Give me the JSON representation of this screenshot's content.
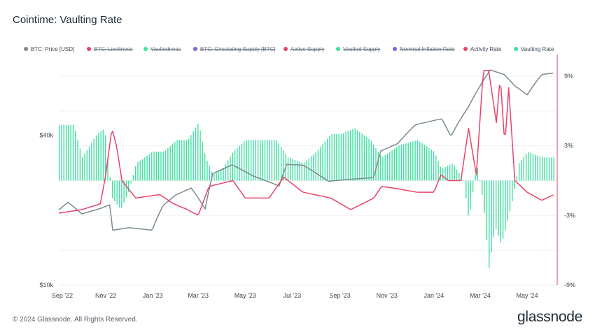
{
  "title": "Cointime: Vaulting Rate",
  "footer": "© 2024 Glassnode. All Rights Reserved.",
  "brand": "glassnode",
  "legend": [
    {
      "label": "BTC: Price [USD]",
      "color": "#7a8a90",
      "active": true
    },
    {
      "label": "BTC: Liveliness",
      "color": "#e8436a",
      "active": false
    },
    {
      "label": "Vaultedness",
      "color": "#3ee0a0",
      "active": false
    },
    {
      "label": "BTC: Circulating Supply [BTC]",
      "color": "#7a6ae0",
      "active": false
    },
    {
      "label": "Active Supply",
      "color": "#e8436a",
      "active": false
    },
    {
      "label": "Vaulted Supply",
      "color": "#3ee0a0",
      "active": false
    },
    {
      "label": "Nominal Inflation Rate",
      "color": "#7a6ae0",
      "active": false
    },
    {
      "label": "Activity Rate",
      "color": "#e8436a",
      "active": true
    },
    {
      "label": "Vaulting Rate",
      "color": "#3ee0a0",
      "active": true
    }
  ],
  "chart_data": {
    "type": "line",
    "title": "Cointime: Vaulting Rate",
    "x_range": [
      "2022-09-01",
      "2024-06-09"
    ],
    "x_ticks": [
      "Sep '22",
      "Nov '22",
      "Jan '23",
      "Mar '23",
      "May '23",
      "Jul '23",
      "Sep '23",
      "Nov '23",
      "Jan '24",
      "Mar '24",
      "May '24"
    ],
    "left_axis": {
      "scale": "log",
      "ticks": [
        "$40k",
        "$10k"
      ],
      "tick_values": [
        40000,
        10000
      ],
      "range": [
        10000,
        81000
      ]
    },
    "right_axis": {
      "ticks": [
        "9%",
        "3%",
        "-3%",
        "-9%"
      ],
      "tick_values": [
        9,
        3,
        -3,
        -9
      ],
      "range": [
        -9,
        10.5
      ]
    },
    "series": [
      {
        "name": "BTC: Price [USD]",
        "axis": "left",
        "style": "line",
        "color": "#7a8a90",
        "points": [
          [
            "2022-09-01",
            20000
          ],
          [
            "2022-09-13",
            21500
          ],
          [
            "2022-10-01",
            19300
          ],
          [
            "2022-10-25",
            20300
          ],
          [
            "2022-11-06",
            21000
          ],
          [
            "2022-11-10",
            16600
          ],
          [
            "2022-12-01",
            17000
          ],
          [
            "2022-12-31",
            16600
          ],
          [
            "2023-01-14",
            20800
          ],
          [
            "2023-01-31",
            23000
          ],
          [
            "2023-02-20",
            24500
          ],
          [
            "2023-03-10",
            20200
          ],
          [
            "2023-03-20",
            28000
          ],
          [
            "2023-04-14",
            30400
          ],
          [
            "2023-05-10",
            27500
          ],
          [
            "2023-06-14",
            25000
          ],
          [
            "2023-06-24",
            30500
          ],
          [
            "2023-07-15",
            30300
          ],
          [
            "2023-08-17",
            26100
          ],
          [
            "2023-09-15",
            26600
          ],
          [
            "2023-10-15",
            27000
          ],
          [
            "2023-10-24",
            34500
          ],
          [
            "2023-11-15",
            37000
          ],
          [
            "2023-12-08",
            44000
          ],
          [
            "2024-01-11",
            46500
          ],
          [
            "2024-01-23",
            39500
          ],
          [
            "2024-02-15",
            52000
          ],
          [
            "2024-03-05",
            66000
          ],
          [
            "2024-03-14",
            73000
          ],
          [
            "2024-04-01",
            70000
          ],
          [
            "2024-04-15",
            63000
          ],
          [
            "2024-05-01",
            58000
          ],
          [
            "2024-05-20",
            70000
          ],
          [
            "2024-06-05",
            71000
          ]
        ]
      },
      {
        "name": "Activity Rate",
        "axis": "right",
        "style": "line",
        "color": "#e8436a",
        "points": [
          [
            "2022-09-01",
            -2.8
          ],
          [
            "2022-10-01",
            -2.5
          ],
          [
            "2022-10-25",
            -2.0
          ],
          [
            "2022-11-01",
            0.5
          ],
          [
            "2022-11-09",
            4.5
          ],
          [
            "2022-11-15",
            3.0
          ],
          [
            "2022-11-22",
            0.0
          ],
          [
            "2022-12-10",
            -1.5
          ],
          [
            "2023-01-10",
            -1.2
          ],
          [
            "2023-01-28",
            -2.0
          ],
          [
            "2023-02-15",
            -2.5
          ],
          [
            "2023-03-01",
            -3.0
          ],
          [
            "2023-03-15",
            -0.5
          ],
          [
            "2023-04-15",
            0.0
          ],
          [
            "2023-05-01",
            -1.5
          ],
          [
            "2023-06-01",
            -1.5
          ],
          [
            "2023-06-20",
            0.3
          ],
          [
            "2023-07-15",
            -1.0
          ],
          [
            "2023-08-20",
            -1.5
          ],
          [
            "2023-09-15",
            -2.5
          ],
          [
            "2023-10-15",
            -1.5
          ],
          [
            "2023-10-25",
            -0.5
          ],
          [
            "2023-11-15",
            -0.7
          ],
          [
            "2023-12-10",
            -1.0
          ],
          [
            "2024-01-01",
            -1.0
          ],
          [
            "2024-01-10",
            0.5
          ],
          [
            "2024-01-20",
            0.0
          ],
          [
            "2024-02-05",
            0.0
          ],
          [
            "2024-02-15",
            4.5
          ],
          [
            "2024-02-25",
            0.5
          ],
          [
            "2024-03-05",
            9.5
          ],
          [
            "2024-03-12",
            9.5
          ],
          [
            "2024-03-22",
            5.0
          ],
          [
            "2024-03-27",
            9.0
          ],
          [
            "2024-04-02",
            3.0
          ],
          [
            "2024-04-07",
            8.0
          ],
          [
            "2024-04-15",
            0.0
          ],
          [
            "2024-05-01",
            -1.0
          ],
          [
            "2024-05-20",
            -1.7
          ],
          [
            "2024-06-05",
            -1.2
          ]
        ]
      },
      {
        "name": "Vaulting Rate",
        "axis": "right",
        "style": "bar",
        "color": "#3ee0a0",
        "points": [
          [
            "2022-09-01",
            4.8
          ],
          [
            "2022-09-20",
            4.8
          ],
          [
            "2022-10-01",
            2.0
          ],
          [
            "2022-10-20",
            4.0
          ],
          [
            "2022-10-30",
            4.5
          ],
          [
            "2022-11-09",
            -1.5
          ],
          [
            "2022-11-20",
            -2.5
          ],
          [
            "2022-11-30",
            -1.0
          ],
          [
            "2022-12-10",
            1.5
          ],
          [
            "2023-01-01",
            2.5
          ],
          [
            "2023-01-15",
            2.5
          ],
          [
            "2023-02-01",
            3.5
          ],
          [
            "2023-02-15",
            3.5
          ],
          [
            "2023-03-01",
            5.0
          ],
          [
            "2023-03-10",
            2.0
          ],
          [
            "2023-03-20",
            0.5
          ],
          [
            "2023-04-01",
            1.0
          ],
          [
            "2023-04-15",
            2.5
          ],
          [
            "2023-05-01",
            3.5
          ],
          [
            "2023-05-20",
            3.5
          ],
          [
            "2023-06-10",
            3.5
          ],
          [
            "2023-06-25",
            2.0
          ],
          [
            "2023-07-15",
            1.5
          ],
          [
            "2023-08-01",
            2.5
          ],
          [
            "2023-08-20",
            4.0
          ],
          [
            "2023-09-01",
            4.0
          ],
          [
            "2023-09-20",
            4.5
          ],
          [
            "2023-10-10",
            3.5
          ],
          [
            "2023-10-25",
            2.0
          ],
          [
            "2023-11-15",
            3.0
          ],
          [
            "2023-12-10",
            3.5
          ],
          [
            "2024-01-01",
            2.5
          ],
          [
            "2024-01-10",
            1.0
          ],
          [
            "2024-01-25",
            1.5
          ],
          [
            "2024-02-08",
            0.0
          ],
          [
            "2024-02-15",
            -3.5
          ],
          [
            "2024-02-25",
            1.5
          ],
          [
            "2024-03-05",
            -2.0
          ],
          [
            "2024-03-12",
            -7.5
          ],
          [
            "2024-03-20",
            -4.0
          ],
          [
            "2024-03-28",
            -5.5
          ],
          [
            "2024-04-05",
            -3.5
          ],
          [
            "2024-04-12",
            -1.5
          ],
          [
            "2024-04-20",
            1.5
          ],
          [
            "2024-05-01",
            2.5
          ],
          [
            "2024-05-20",
            2.0
          ],
          [
            "2024-06-05",
            2.0
          ]
        ]
      }
    ],
    "grid": true,
    "legend_position": "top"
  }
}
